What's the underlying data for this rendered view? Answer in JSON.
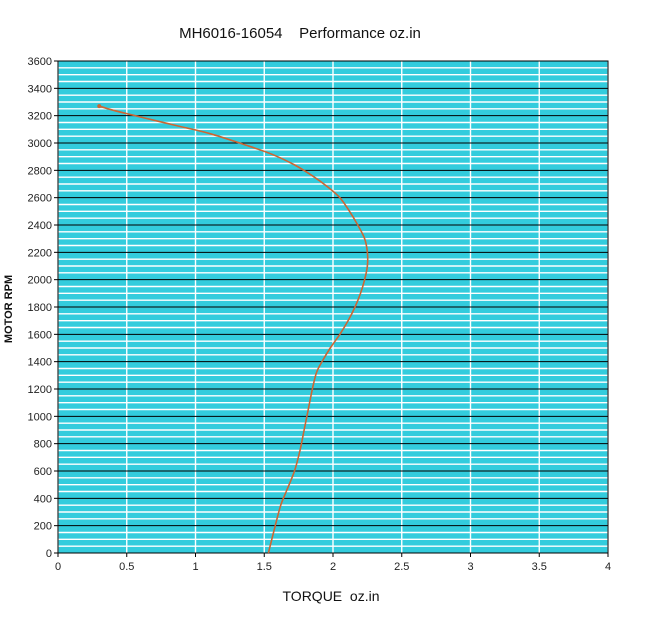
{
  "chart_data": {
    "type": "line",
    "title": "MH6016-16054    Performance oz.in",
    "xlabel": "TORQUE  oz.in",
    "ylabel": "MOTOR RPM",
    "xlim": [
      0,
      4
    ],
    "ylim": [
      0,
      3600
    ],
    "x_ticks": [
      "0",
      "0.5",
      "1",
      "1.5",
      "2",
      "2.5",
      "3",
      "3.5",
      "4"
    ],
    "y_ticks": [
      "0",
      "200",
      "400",
      "600",
      "800",
      "1000",
      "1200",
      "1400",
      "1600",
      "1800",
      "2000",
      "2200",
      "2400",
      "2600",
      "2800",
      "3000",
      "3200",
      "3400",
      "3600"
    ],
    "grid": true,
    "colors": {
      "background": "#33ccdd",
      "major_grid": "#000000",
      "minor_grid": "#ffffff",
      "series": "#cc6633"
    },
    "series": [
      {
        "x": [
          1.53,
          1.58,
          1.62,
          1.66,
          1.72,
          1.76,
          1.79,
          1.82,
          1.85,
          1.88,
          1.92,
          1.98,
          2.05,
          2.11,
          2.16,
          2.2,
          2.23,
          2.25,
          2.25,
          2.23,
          2.18,
          2.12,
          2.05,
          1.96,
          1.85,
          1.72,
          1.55,
          1.35,
          1.1,
          0.85,
          0.6,
          0.4,
          0.3
        ],
        "y": [
          0,
          200,
          350,
          450,
          600,
          750,
          900,
          1050,
          1200,
          1320,
          1400,
          1500,
          1600,
          1700,
          1800,
          1900,
          2000,
          2100,
          2200,
          2300,
          2400,
          2500,
          2600,
          2680,
          2760,
          2840,
          2920,
          2990,
          3070,
          3130,
          3190,
          3240,
          3270
        ]
      }
    ]
  }
}
